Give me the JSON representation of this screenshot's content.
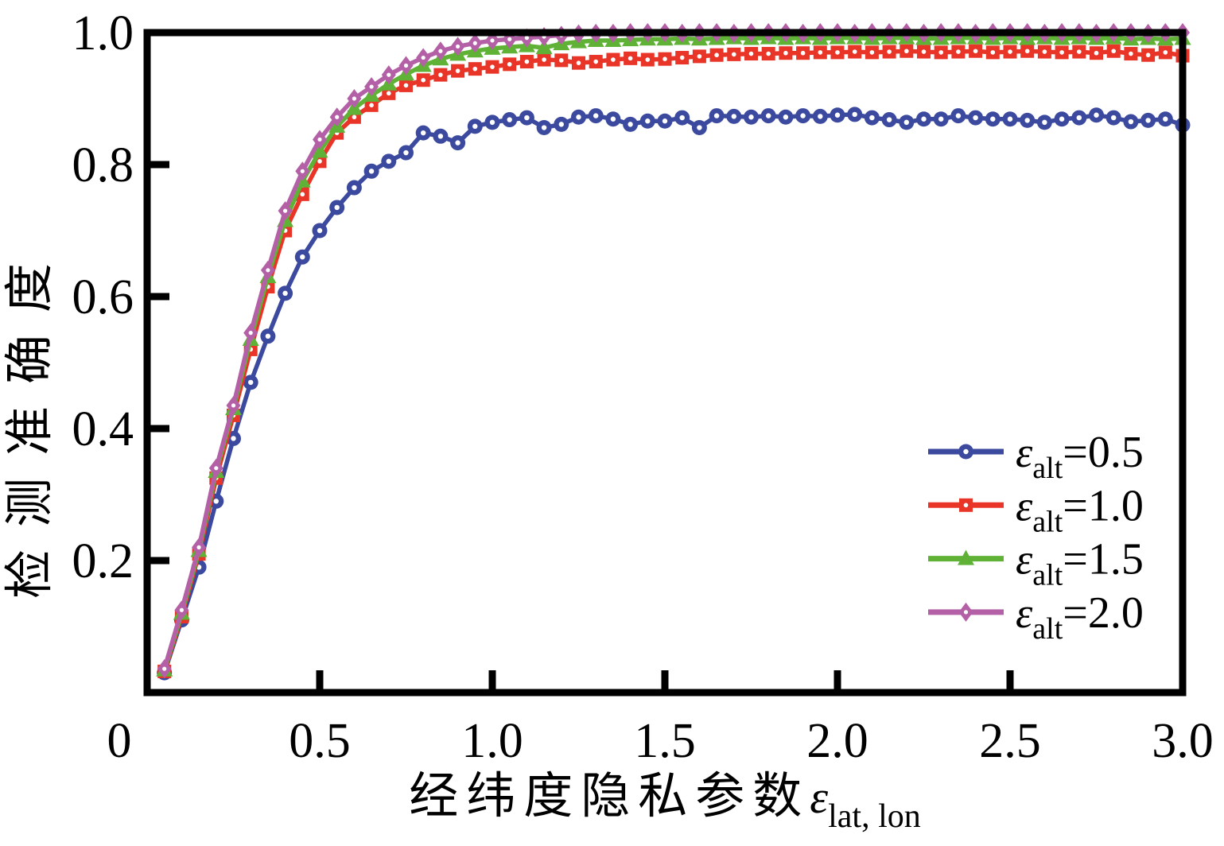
{
  "figure": {
    "background": "#ffffff",
    "frame_color": "#000000"
  },
  "chart_data": {
    "type": "line",
    "title": "",
    "xlabel_text": "经纬度隐私参数",
    "xlabel_symbol": "ε",
    "xlabel_subscript": "lat, lon",
    "ylabel": "检测准确度",
    "xlim": [
      0,
      3.0
    ],
    "ylim": [
      0,
      1.0
    ],
    "grid": false,
    "legend_position": "inside lower right",
    "x_ticks": [
      0,
      0.5,
      1.0,
      1.5,
      2.0,
      2.5,
      3.0
    ],
    "x_tick_labels": [
      "0",
      "0.5",
      "1.0",
      "1.5",
      "2.0",
      "2.5",
      "3.0"
    ],
    "y_ticks": [
      0.2,
      0.4,
      0.6,
      0.8,
      1.0
    ],
    "y_tick_labels": [
      "0.2",
      "0.4",
      "0.6",
      "0.8",
      "1.0"
    ],
    "x": [
      0.05,
      0.1,
      0.15,
      0.2,
      0.25,
      0.3,
      0.35,
      0.4,
      0.45,
      0.5,
      0.55,
      0.6,
      0.65,
      0.7,
      0.75,
      0.8,
      0.85,
      0.9,
      0.95,
      1.0,
      1.05,
      1.1,
      1.15,
      1.2,
      1.25,
      1.3,
      1.35,
      1.4,
      1.45,
      1.5,
      1.55,
      1.6,
      1.65,
      1.7,
      1.75,
      1.8,
      1.85,
      1.9,
      1.95,
      2.0,
      2.05,
      2.1,
      2.15,
      2.2,
      2.25,
      2.3,
      2.35,
      2.4,
      2.45,
      2.5,
      2.55,
      2.6,
      2.65,
      2.7,
      2.75,
      2.8,
      2.85,
      2.9,
      2.95,
      3.0
    ],
    "series": [
      {
        "name": "ε_alt=0.5",
        "color": "#3B4A9F",
        "marker": "circle",
        "values": [
          0.03,
          0.11,
          0.19,
          0.29,
          0.385,
          0.47,
          0.54,
          0.605,
          0.66,
          0.7,
          0.735,
          0.765,
          0.79,
          0.805,
          0.818,
          0.848,
          0.843,
          0.833,
          0.858,
          0.864,
          0.868,
          0.871,
          0.856,
          0.861,
          0.872,
          0.874,
          0.869,
          0.861,
          0.866,
          0.866,
          0.871,
          0.856,
          0.874,
          0.873,
          0.872,
          0.874,
          0.872,
          0.874,
          0.873,
          0.875,
          0.876,
          0.871,
          0.868,
          0.864,
          0.869,
          0.869,
          0.874,
          0.871,
          0.869,
          0.869,
          0.867,
          0.864,
          0.869,
          0.871,
          0.875,
          0.871,
          0.865,
          0.867,
          0.869,
          0.86
        ]
      },
      {
        "name": "ε_alt=1.0",
        "color": "#E93428",
        "marker": "square",
        "values": [
          0.032,
          0.115,
          0.21,
          0.325,
          0.42,
          0.52,
          0.615,
          0.7,
          0.755,
          0.805,
          0.848,
          0.872,
          0.89,
          0.908,
          0.92,
          0.928,
          0.936,
          0.942,
          0.945,
          0.948,
          0.952,
          0.956,
          0.959,
          0.958,
          0.954,
          0.956,
          0.959,
          0.961,
          0.959,
          0.96,
          0.962,
          0.964,
          0.966,
          0.967,
          0.968,
          0.968,
          0.969,
          0.969,
          0.97,
          0.97,
          0.971,
          0.97,
          0.971,
          0.972,
          0.971,
          0.97,
          0.971,
          0.972,
          0.97,
          0.971,
          0.972,
          0.971,
          0.97,
          0.971,
          0.969,
          0.972,
          0.968,
          0.966,
          0.97,
          0.965
        ]
      },
      {
        "name": "ε_alt=1.5",
        "color": "#5FB236",
        "marker": "triangle",
        "values": [
          0.034,
          0.12,
          0.215,
          0.335,
          0.43,
          0.535,
          0.63,
          0.715,
          0.775,
          0.82,
          0.858,
          0.885,
          0.905,
          0.922,
          0.937,
          0.95,
          0.96,
          0.967,
          0.972,
          0.976,
          0.978,
          0.98,
          0.977,
          0.983,
          0.986,
          0.988,
          0.988,
          0.989,
          0.99,
          0.99,
          0.991,
          0.99,
          0.991,
          0.992,
          0.991,
          0.992,
          0.991,
          0.992,
          0.991,
          0.992,
          0.992,
          0.991,
          0.992,
          0.992,
          0.991,
          0.991,
          0.992,
          0.992,
          0.991,
          0.992,
          0.991,
          0.992,
          0.991,
          0.992,
          0.991,
          0.992,
          0.99,
          0.991,
          0.99,
          0.991
        ]
      },
      {
        "name": "ε_alt=2.0",
        "color": "#B460A6",
        "marker": "diamond",
        "values": [
          0.036,
          0.125,
          0.22,
          0.34,
          0.435,
          0.545,
          0.64,
          0.73,
          0.79,
          0.838,
          0.872,
          0.9,
          0.918,
          0.936,
          0.95,
          0.962,
          0.972,
          0.979,
          0.984,
          0.988,
          0.99,
          0.992,
          0.994,
          0.996,
          0.998,
          0.999,
          0.999,
          1.0,
          1.0,
          1.0,
          0.999,
          1.0,
          1.0,
          0.999,
          1.0,
          1.0,
          1.0,
          0.999,
          1.0,
          1.0,
          0.999,
          1.0,
          1.0,
          1.0,
          0.999,
          1.0,
          1.0,
          0.999,
          1.0,
          1.0,
          1.0,
          0.999,
          1.0,
          1.0,
          0.999,
          1.0,
          1.0,
          0.999,
          1.0,
          1.0
        ]
      }
    ]
  },
  "legend": {
    "symbol": "ε",
    "subscript": "alt",
    "entries": [
      {
        "suffix": "=0.5",
        "label": "ε_alt=0.5",
        "color": "#3B4A9F",
        "marker": "circle"
      },
      {
        "suffix": "=1.0",
        "label": "ε_alt=1.0",
        "color": "#E93428",
        "marker": "square"
      },
      {
        "suffix": "=1.5",
        "label": "ε_alt=1.5",
        "color": "#5FB236",
        "marker": "triangle"
      },
      {
        "suffix": "=2.0",
        "label": "ε_alt=2.0",
        "color": "#B460A6",
        "marker": "diamond"
      }
    ]
  }
}
